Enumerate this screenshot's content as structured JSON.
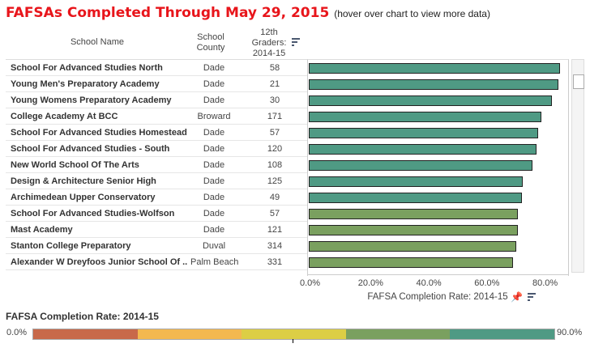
{
  "title": "FAFSAs Completed Through May 29, 2015",
  "subtitle": "(hover over chart to view more data)",
  "columns": {
    "name": "School Name",
    "county": "School County",
    "graders": "12th Graders: 2014-15"
  },
  "rows": [
    {
      "name": "School For Advanced Studies North",
      "county": "Dade",
      "graders": "58",
      "rate": 86.4
    },
    {
      "name": "Young Men's Preparatory Academy",
      "county": "Dade",
      "graders": "21",
      "rate": 85.8
    },
    {
      "name": "Young Womens Preparatory Academy",
      "county": "Dade",
      "graders": "30",
      "rate": 83.6
    },
    {
      "name": "College Academy At BCC",
      "county": "Broward",
      "graders": "171",
      "rate": 80.0
    },
    {
      "name": "School For Advanced Studies Homestead",
      "county": "Dade",
      "graders": "57",
      "rate": 78.8
    },
    {
      "name": "School For Advanced Studies - South",
      "county": "Dade",
      "graders": "120",
      "rate": 78.3
    },
    {
      "name": "New World School Of The Arts",
      "county": "Dade",
      "graders": "108",
      "rate": 76.9
    },
    {
      "name": "Design & Architecture Senior High",
      "county": "Dade",
      "graders": "125",
      "rate": 73.5
    },
    {
      "name": "Archimedean Upper Conservatory",
      "county": "Dade",
      "graders": "49",
      "rate": 73.3
    },
    {
      "name": "School For Advanced Studies-Wolfson",
      "county": "Dade",
      "graders": "57",
      "rate": 71.9
    },
    {
      "name": "Mast Academy",
      "county": "Dade",
      "graders": "121",
      "rate": 71.9
    },
    {
      "name": "Stanton College Preparatory",
      "county": "Duval",
      "graders": "314",
      "rate": 71.3
    },
    {
      "name": "Alexander W Dreyfoos Junior School Of ..",
      "county": "Palm Beach",
      "graders": "331",
      "rate": 70.2
    }
  ],
  "axis": {
    "ticks": [
      "0.0%",
      "20.0%",
      "40.0%",
      "60.0%",
      "80.0%"
    ],
    "label": "FAFSA Completion Rate: 2014-15",
    "max": 80
  },
  "legend": {
    "title": "FAFSA Completion Rate: 2014-15",
    "min": "0.0%",
    "max": "90.0%",
    "colors": [
      "#c8694a",
      "#f3b84f",
      "#dcce45",
      "#7aa05f",
      "#4f9a84"
    ]
  },
  "colors": {
    "high": "#4f9a84",
    "mid": "#7aa05f",
    "threshold": 72
  }
}
